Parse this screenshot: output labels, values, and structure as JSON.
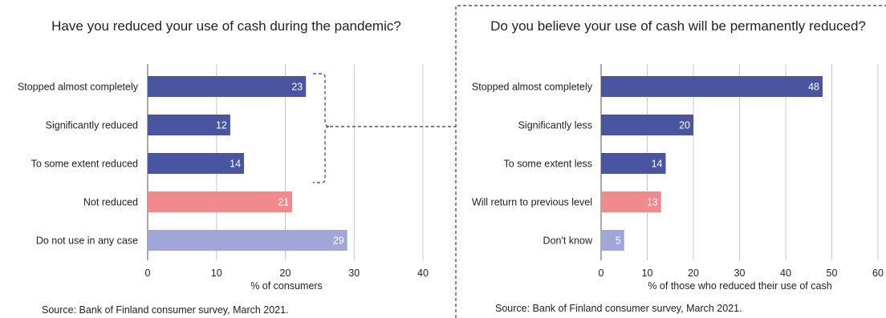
{
  "chart_data": [
    {
      "type": "bar",
      "orientation": "horizontal",
      "title": "Have you reduced your use of cash during the pandemic?",
      "categories": [
        "Stopped almost completely",
        "Significantly reduced",
        "To some extent reduced",
        "Not reduced",
        "Do not use in any case"
      ],
      "values": [
        23,
        12,
        14,
        21,
        29
      ],
      "bar_colors": [
        "#4a55a2",
        "#4a55a2",
        "#4a55a2",
        "#f08a8d",
        "#a0a6d8"
      ],
      "xlabel": "% of consumers",
      "ylabel": "",
      "xlim": [
        0,
        40
      ],
      "xticks": [
        0,
        10,
        20,
        30,
        40
      ],
      "grid": "vertical",
      "data_labels": true,
      "source": "Source: Bank of Finland consumer survey, March 2021."
    },
    {
      "type": "bar",
      "orientation": "horizontal",
      "title": "Do you believe your use of cash will be permanently reduced?",
      "categories": [
        "Stopped almost completely",
        "Significantly less",
        "To some extent less",
        "Will return to previous level",
        "Don't know"
      ],
      "values": [
        48,
        20,
        14,
        13,
        5
      ],
      "bar_colors": [
        "#4a55a2",
        "#4a55a2",
        "#4a55a2",
        "#f08a8d",
        "#a0a6d8"
      ],
      "xlabel": "% of those who reduced their use of cash",
      "ylabel": "",
      "xlim": [
        0,
        60
      ],
      "xticks": [
        0,
        10,
        20,
        30,
        40,
        50,
        60
      ],
      "grid": "vertical",
      "data_labels": true,
      "source": "Source: Bank of Finland consumer survey, March 2021."
    }
  ],
  "connector_color": "#4a55a2"
}
